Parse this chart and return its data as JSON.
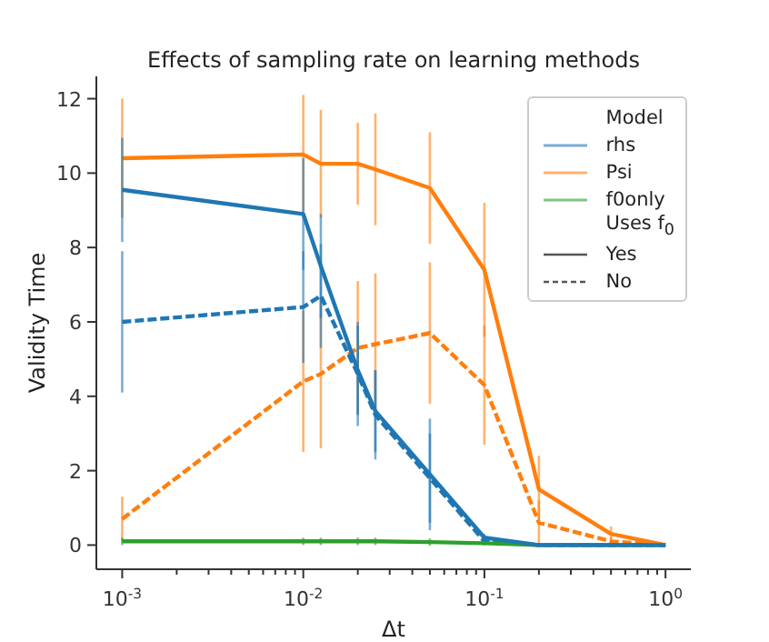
{
  "chart_data": {
    "type": "line",
    "title": "Effects of sampling rate on learning methods",
    "xlabel": "Δt",
    "ylabel": "Validity Time",
    "legend_title": "Model",
    "annotations": [
      "Uses f$_{0}$",
      "Yes",
      "No"
    ],
    "log": "x",
    "legend": "top right",
    "grid": false,
    "marker": "none",
    "x": [
      0.001,
      0.01,
      0.0125,
      0.02,
      0.025,
      0.05,
      0.1,
      0.2,
      0.5,
      1
    ],
    "xlim": [
      0.00072,
      1.38
    ],
    "xticks": [
      {
        "value": 0.001,
        "label": "10$^{-3}$"
      },
      {
        "value": 0.01,
        "label": "10$^{-2}$"
      },
      {
        "value": 0.1,
        "label": "10$^{-1}$"
      },
      {
        "value": 1,
        "label": "10$^{0}$"
      },
      {
        "value": 0.002,
        "label": null
      },
      {
        "value": 0.003,
        "label": null
      },
      {
        "value": 0.004,
        "label": null
      },
      {
        "value": 0.005,
        "label": null
      },
      {
        "value": 0.006,
        "label": null
      },
      {
        "value": 0.007,
        "label": null
      },
      {
        "value": 0.008,
        "label": null
      },
      {
        "value": 0.009,
        "label": null
      },
      {
        "value": 0.02,
        "label": null
      },
      {
        "value": 0.03,
        "label": null
      },
      {
        "value": 0.04,
        "label": null
      },
      {
        "value": 0.05,
        "label": null
      },
      {
        "value": 0.06,
        "label": null
      },
      {
        "value": 0.07,
        "label": null
      },
      {
        "value": 0.08,
        "label": null
      },
      {
        "value": 0.09,
        "label": null
      },
      {
        "value": 0.2,
        "label": null
      },
      {
        "value": 0.3,
        "label": null
      },
      {
        "value": 0.4,
        "label": null
      },
      {
        "value": 0.5,
        "label": null
      },
      {
        "value": 0.6,
        "label": null
      },
      {
        "value": 0.7,
        "label": null
      },
      {
        "value": 0.8,
        "label": null
      },
      {
        "value": 0.9,
        "label": null
      }
    ],
    "ylim": [
      -0.65,
      12.6
    ],
    "yticks": [
      0,
      2,
      4,
      6,
      8,
      10,
      12
    ],
    "series": [
      {
        "name": "rhs",
        "color": "#1f77b4",
        "line_style": "solid",
        "values": [
          9.55,
          8.9,
          7.5,
          4.7,
          3.6,
          1.9,
          0.2,
          0,
          0,
          0
        ],
        "errors": [
          1.4,
          1.5,
          1.4,
          1.2,
          1.1,
          1.5,
          0.1,
          0,
          0,
          0
        ]
      },
      {
        "name": "Psi",
        "color": "#ff7f0e",
        "line_style": "solid",
        "values": [
          10.4,
          10.5,
          10.25,
          10.25,
          10.1,
          9.6,
          7.4,
          1.5,
          0.3,
          0
        ],
        "errors": [
          1.6,
          1.6,
          1.45,
          1.1,
          1.5,
          1.5,
          1.8,
          0.9,
          0.2,
          0
        ]
      },
      {
        "name": "f0only",
        "color": "#2ca02c",
        "line_style": "solid",
        "values": [
          0.1,
          0.1,
          0.1,
          0.1,
          0.1,
          0.08,
          0.05,
          0,
          0,
          0
        ],
        "errors": [
          0.1,
          0.1,
          0.1,
          0.1,
          0.1,
          0.1,
          0.05,
          0,
          0,
          0
        ]
      },
      {
        "color": "#1f77b4",
        "line_style": "dashed",
        "values": [
          6.0,
          6.4,
          6.7,
          4.6,
          3.5,
          1.8,
          0.1,
          0,
          0,
          0
        ],
        "errors": [
          1.9,
          1.5,
          1.4,
          1.4,
          1.2,
          1.2,
          0.1,
          0,
          0,
          0
        ]
      },
      {
        "color": "#ff7f0e",
        "line_style": "dashed",
        "values": [
          0.7,
          4.4,
          4.6,
          5.3,
          5.4,
          5.7,
          4.3,
          0.6,
          0.1,
          0
        ],
        "errors": [
          0.6,
          1.9,
          2.0,
          1.8,
          1.9,
          1.9,
          1.6,
          0.6,
          0.1,
          0
        ]
      },
      {
        "color": "#2ca02c",
        "line_style": "dashed",
        "values": [
          null,
          null,
          null,
          null,
          null,
          null,
          null,
          null,
          null,
          null
        ]
      }
    ]
  }
}
